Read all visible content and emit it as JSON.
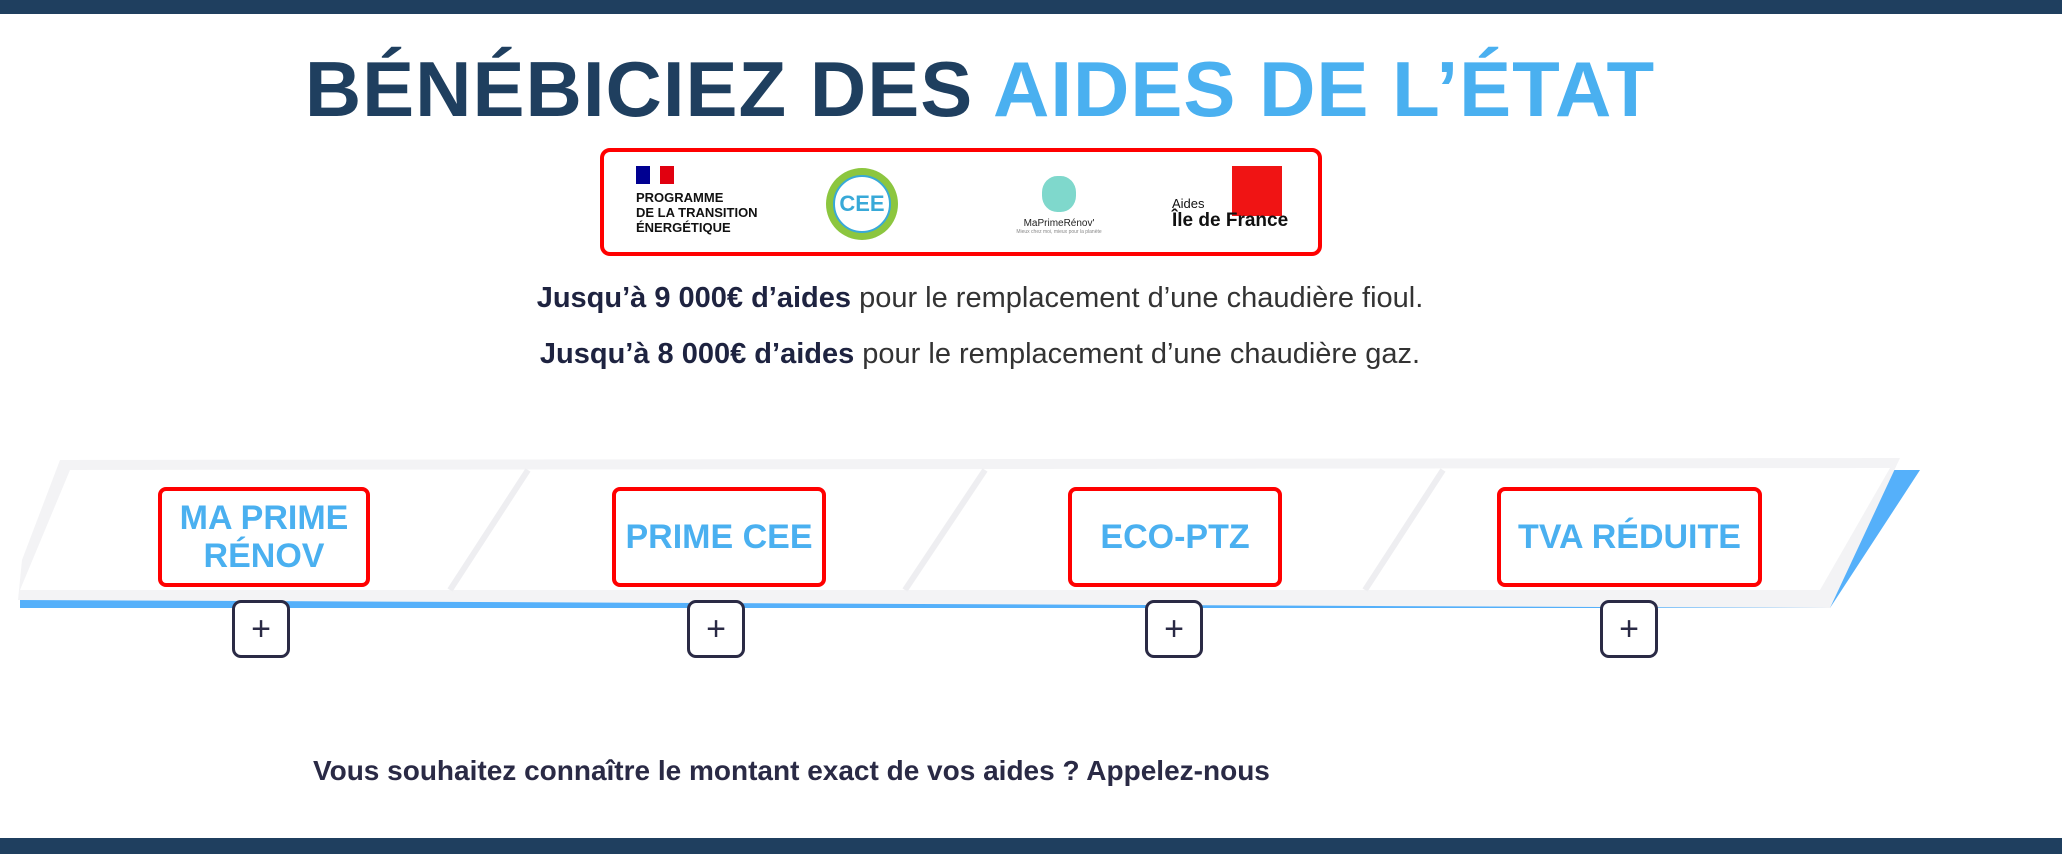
{
  "title": {
    "part1": "BÉNÉBICIEZ DES",
    "part2": "AIDES DE L’ÉTAT"
  },
  "logos": {
    "programme": [
      "PROGRAMME",
      "DE LA TRANSITION",
      "ÉNERGÉTIQUE"
    ],
    "cee": "CEE",
    "maprimerenov": "MaPrimeRénov'",
    "maprimerenov_tagline": "Mieux chez moi, mieux pour la planète",
    "idf_small": "Aides",
    "idf_big": "Île de France"
  },
  "lines": [
    {
      "bold": "Jusqu’à 9 000€ d’aides",
      "rest": " pour le remplacement d’une chaudière fioul."
    },
    {
      "bold": "Jusqu’à 8 000€ d’aides",
      "rest": " pour le remplacement d’une chaudière gaz."
    }
  ],
  "aids": [
    {
      "label": "MA PRIME RÉNOV",
      "expand": "+"
    },
    {
      "label": "PRIME CEE",
      "expand": "+"
    },
    {
      "label": "ECO-PTZ",
      "expand": "+"
    },
    {
      "label": "TVA RÉDUITE",
      "expand": "+"
    }
  ],
  "cta": "Vous souhaitez connaître le montant exact de vos aides ? Appelez-nous",
  "colors": {
    "navy": "#1f3f5f",
    "accent": "#4ab0f0",
    "highlight": "#ff0000",
    "stripe": "#55b0fa"
  }
}
